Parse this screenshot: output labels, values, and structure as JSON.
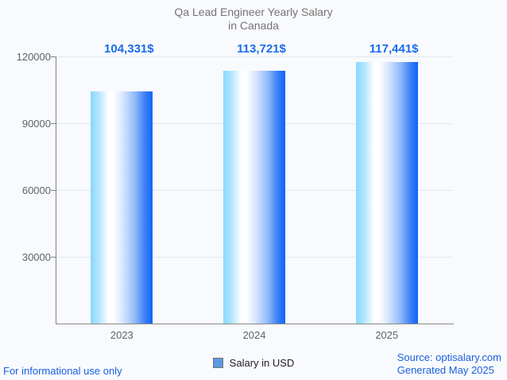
{
  "chart_data": {
    "type": "bar",
    "title": "Qa Lead Engineer Yearly Salary in Canada",
    "title_line1": "Qa Lead Engineer Yearly Salary",
    "title_line2": "in Canada",
    "categories": [
      "2023",
      "2024",
      "2025"
    ],
    "series": [
      {
        "name": "Salary in USD",
        "values": [
          104331,
          113721,
          117441
        ],
        "value_labels": [
          "104,331$",
          "113,721$",
          "117,441$"
        ]
      }
    ],
    "xlabel": "",
    "ylabel": "",
    "ylim": [
      0,
      120000
    ],
    "yticks": [
      30000,
      60000,
      90000,
      120000
    ],
    "ytick_labels": [
      "30000",
      "60000",
      "90000",
      "120000"
    ],
    "grid": true,
    "legend_position": "bottom",
    "legend_label": "Salary in USD"
  },
  "footer": {
    "disclaimer": "For informational use only",
    "source": "Source: optisalary.com",
    "generated": "Generated May 2025"
  },
  "colors": {
    "background": "#f8fafd",
    "value_label_blue": "#1a6ceb",
    "footer_blue": "#1a5fe0",
    "title_gray": "#757575",
    "axis_label_gray": "#5f6368",
    "gridline": "#e3e7ec",
    "axis_line": "#828282",
    "bar_gradient_left": "#88d8fd",
    "bar_gradient_mid": "#ffffff",
    "bar_gradient_right": "#0d65fd",
    "legend_swatch_fill": "#5d97e6",
    "legend_swatch_border": "#757575"
  }
}
